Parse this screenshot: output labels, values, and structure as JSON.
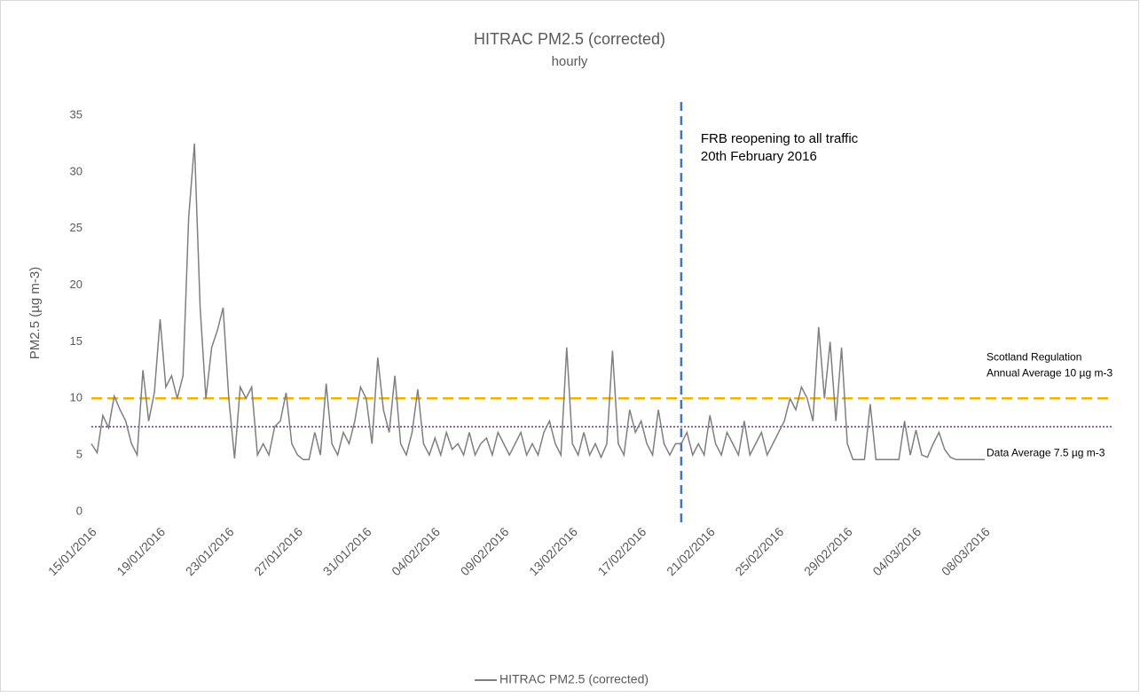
{
  "chart_data": {
    "type": "line",
    "title": "HITRAC PM2.5 (corrected)",
    "subtitle": "hourly",
    "y_label": "PM2.5 (µg m-3)",
    "categories": [
      "15/01/2016",
      null,
      null,
      null,
      null,
      null,
      null,
      null,
      null,
      null,
      null,
      null,
      "19/01/2016",
      null,
      null,
      null,
      null,
      null,
      null,
      null,
      null,
      null,
      null,
      null,
      "23/01/2016",
      null,
      null,
      null,
      null,
      null,
      null,
      null,
      null,
      null,
      null,
      null,
      "27/01/2016",
      null,
      null,
      null,
      null,
      null,
      null,
      null,
      null,
      null,
      null,
      null,
      "31/01/2016",
      null,
      null,
      null,
      null,
      null,
      null,
      null,
      null,
      null,
      null,
      null,
      "04/02/2016",
      null,
      null,
      null,
      null,
      null,
      null,
      null,
      null,
      null,
      null,
      null,
      "09/02/2016",
      null,
      null,
      null,
      null,
      null,
      null,
      null,
      null,
      null,
      null,
      null,
      "13/02/2016",
      null,
      null,
      null,
      null,
      null,
      null,
      null,
      null,
      null,
      null,
      null,
      "17/02/2016",
      null,
      null,
      null,
      null,
      null,
      null,
      null,
      null,
      null,
      null,
      null,
      "21/02/2016",
      null,
      null,
      null,
      null,
      null,
      null,
      null,
      null,
      null,
      null,
      null,
      "25/02/2016",
      null,
      null,
      null,
      null,
      null,
      null,
      null,
      null,
      null,
      null,
      null,
      "29/02/2016",
      null,
      null,
      null,
      null,
      null,
      null,
      null,
      null,
      null,
      null,
      null,
      "04/03/2016",
      null,
      null,
      null,
      null,
      null,
      null,
      null,
      null,
      null,
      null,
      null,
      "08/03/2016"
    ],
    "series": [
      {
        "name": "HITRAC PM2.5 (corrected)",
        "color": "#7f7f7f",
        "values": [
          6,
          5.2,
          8.5,
          7.4,
          10.2,
          9,
          8,
          6,
          5,
          12.5,
          8,
          10.5,
          17,
          11,
          12,
          10,
          12,
          26,
          32.5,
          18,
          10,
          14.5,
          16,
          18,
          10,
          4.7,
          11,
          10,
          11,
          5,
          6,
          5,
          7.5,
          8,
          10.5,
          6,
          5,
          4.6,
          4.6,
          7,
          5,
          11.3,
          6,
          5,
          7,
          6,
          8,
          11,
          10,
          6,
          13.6,
          9,
          7,
          12,
          6,
          5,
          7,
          10.8,
          6,
          5,
          6.5,
          5,
          7,
          5.5,
          6,
          5,
          7,
          5,
          6,
          6.5,
          5,
          7,
          6,
          5,
          6,
          7,
          5,
          6,
          5,
          7,
          8,
          6,
          5,
          14.5,
          6,
          5,
          7,
          5,
          6,
          4.8,
          6,
          14.2,
          6,
          5,
          9,
          7,
          8,
          6,
          5,
          9,
          6,
          5,
          6,
          6,
          7,
          5,
          6,
          5,
          8.5,
          6,
          5,
          7,
          6,
          5,
          8,
          5,
          6,
          7,
          5,
          6,
          7,
          8,
          10,
          9,
          11,
          10,
          8,
          16.3,
          10,
          15,
          8,
          14.5,
          6,
          4.6,
          4.6,
          4.6,
          9.5,
          4.6,
          4.6,
          4.6,
          4.6,
          4.6,
          8,
          5,
          7.2,
          5,
          4.8,
          6,
          7,
          5.5,
          4.8,
          4.6,
          4.6,
          4.6,
          4.6,
          4.6,
          4.6
        ]
      }
    ],
    "ylim": [
      0,
      35
    ],
    "yticks": [
      0,
      5,
      10,
      15,
      20,
      25,
      30,
      35
    ],
    "reference_lines": [
      {
        "value": 10,
        "color": "#f0b400",
        "style": "dashed",
        "labels": [
          "Scotland Regulation",
          "Annual Average 10 µg m-3"
        ]
      },
      {
        "value": 7.5,
        "color": "#7030a0",
        "style": "dotted",
        "labels": [
          "Data Average 7.5 µg m-3"
        ]
      }
    ],
    "event_line": {
      "x": 103,
      "color": "#4472c4",
      "labels": [
        "FRB reopening to all traffic",
        "20th February 2016"
      ]
    },
    "legend": "bottom"
  }
}
